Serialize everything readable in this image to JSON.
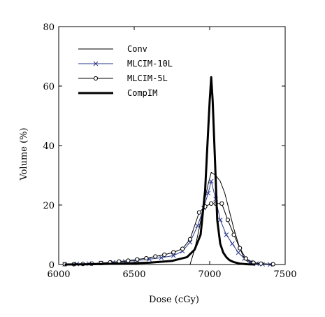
{
  "chart_data": {
    "type": "line",
    "title": "",
    "xlabel": "Dose (cGy)",
    "ylabel": "Volume (%)",
    "xlim": [
      6000,
      7500
    ],
    "ylim": [
      0,
      80
    ],
    "xticks": [
      "6000",
      "6500",
      "7000",
      "7500"
    ],
    "yticks": [
      "0",
      "20",
      "40",
      "60",
      "80"
    ],
    "legend_position": "top-left",
    "grid": false,
    "series": [
      {
        "name": "Conv",
        "color": "#000000",
        "style": "thin",
        "marker": "none",
        "x": [
          6870,
          6900,
          6930,
          6960,
          6990,
          7010,
          7040,
          7070,
          7100,
          7130,
          7160,
          7190,
          7220,
          7250,
          7280,
          7310
        ],
        "y": [
          0,
          5,
          12,
          20,
          27,
          31,
          30,
          28,
          24,
          18,
          12,
          7,
          3,
          1,
          0.3,
          0
        ]
      },
      {
        "name": "MLCIM-10L",
        "color": "#2a3a8c",
        "style": "thin",
        "marker": "x",
        "x": [
          6040,
          6120,
          6200,
          6280,
          6360,
          6440,
          6520,
          6600,
          6680,
          6760,
          6820,
          6870,
          6920,
          6960,
          6990,
          7010,
          7040,
          7070,
          7110,
          7150,
          7190,
          7230,
          7270,
          7310,
          7350,
          7400
        ],
        "y": [
          0.1,
          0.2,
          0.3,
          0.5,
          0.7,
          1.0,
          1.4,
          1.8,
          2.3,
          3.0,
          4.5,
          7.5,
          13,
          19,
          24,
          28,
          22,
          15,
          10,
          7,
          4,
          2,
          0.8,
          0.3,
          0.1,
          0
        ]
      },
      {
        "name": "MLCIM-5L",
        "color": "#000000",
        "style": "thin",
        "marker": "circle",
        "x": [
          6040,
          6100,
          6160,
          6220,
          6280,
          6340,
          6400,
          6460,
          6520,
          6580,
          6640,
          6700,
          6760,
          6820,
          6870,
          6930,
          6970,
          7010,
          7040,
          7080,
          7120,
          7160,
          7200,
          7240,
          7290,
          7340,
          7420
        ],
        "y": [
          0.1,
          0.1,
          0.2,
          0.3,
          0.5,
          0.7,
          1.0,
          1.3,
          1.7,
          2.1,
          2.7,
          3.3,
          4.1,
          5.3,
          8.5,
          17.5,
          19.5,
          20.5,
          20.5,
          20.5,
          15,
          10,
          5.5,
          2,
          0.6,
          0.3,
          0.1
        ]
      },
      {
        "name": "CompIM",
        "color": "#000000",
        "style": "thick",
        "marker": "none",
        "x": [
          6040,
          6200,
          6400,
          6600,
          6750,
          6850,
          6900,
          6940,
          6970,
          6990,
          7000,
          7010,
          7020,
          7035,
          7050,
          7070,
          7090,
          7110,
          7130,
          7160,
          7200,
          7250,
          7300
        ],
        "y": [
          0,
          0.1,
          0.3,
          0.6,
          1.2,
          2.5,
          5,
          10,
          25,
          45,
          55,
          63,
          55,
          35,
          15,
          7,
          4,
          2.5,
          1.5,
          0.8,
          0.3,
          0.1,
          0
        ]
      }
    ]
  }
}
